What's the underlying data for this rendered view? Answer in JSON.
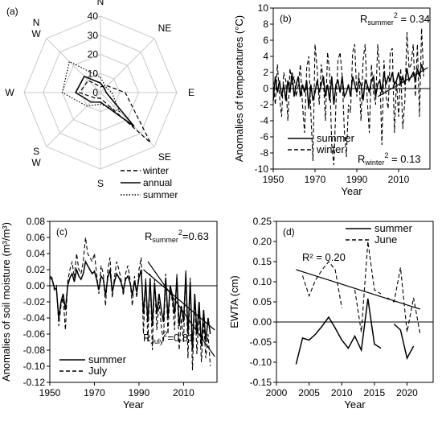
{
  "chart_data": [
    {
      "panel": "(a)",
      "type": "radar",
      "directions": [
        "N",
        "NE",
        "E",
        "SE",
        "S",
        "SW",
        "W",
        "NW"
      ],
      "direction_labels": [
        "N",
        "NE",
        "E",
        "SE",
        "S",
        "S\nW",
        "W",
        "N\nW"
      ],
      "r_ticks": [
        0,
        10,
        20,
        30,
        40
      ],
      "rmax": 40,
      "grid": true,
      "legend_position": "bottom-right",
      "series": [
        {
          "name": "winter",
          "dash": "dashed",
          "values": [
            3,
            5,
            13,
            37,
            3,
            4,
            11,
            9
          ]
        },
        {
          "name": "annual",
          "dash": "solid",
          "values": [
            5,
            3,
            3,
            25,
            5,
            7,
            13,
            12
          ]
        },
        {
          "name": "summer",
          "dash": "dotted",
          "values": [
            8,
            4,
            6,
            14,
            6,
            10,
            20,
            23
          ]
        }
      ]
    },
    {
      "panel": "(b)",
      "type": "line",
      "xlabel": "Year",
      "ylabel": "Anomalies of temperatures (°C)",
      "xlim": [
        1950,
        2025
      ],
      "ylim": [
        -10,
        10
      ],
      "xticks": [
        1950,
        1970,
        1990,
        2010
      ],
      "yticks": [
        -10,
        -8,
        -6,
        -4,
        -2,
        0,
        2,
        4,
        6,
        8,
        10
      ],
      "annotations": [
        {
          "label": "R",
          "sub": "summer",
          "tail": " = 0.34"
        },
        {
          "label": "R",
          "sub": "winter",
          "tail": " = 0.13"
        }
      ],
      "legend_position": "bottom-left",
      "x": [
        1950,
        1951,
        1952,
        1953,
        1954,
        1955,
        1956,
        1957,
        1958,
        1959,
        1960,
        1961,
        1962,
        1963,
        1964,
        1965,
        1966,
        1967,
        1968,
        1969,
        1970,
        1971,
        1972,
        1973,
        1974,
        1975,
        1976,
        1977,
        1978,
        1979,
        1980,
        1981,
        1982,
        1983,
        1984,
        1985,
        1986,
        1987,
        1988,
        1989,
        1990,
        1991,
        1992,
        1993,
        1994,
        1995,
        1996,
        1997,
        1998,
        1999,
        2000,
        2001,
        2002,
        2003,
        2004,
        2005,
        2006,
        2007,
        2008,
        2009,
        2010,
        2011,
        2012,
        2013,
        2014,
        2015,
        2016,
        2017,
        2018,
        2019,
        2020,
        2021,
        2022
      ],
      "series": [
        {
          "name": "summer",
          "dash": "solid",
          "values": [
            -1.5,
            1.5,
            -0.5,
            1.0,
            -1.0,
            0.5,
            -1.5,
            1.0,
            -0.5,
            2.0,
            -1.0,
            0.5,
            1.5,
            -1.0,
            0.5,
            -0.5,
            1.0,
            -2.5,
            0.5,
            -1.5,
            -0.5,
            1.0,
            -0.5,
            0.5,
            1.5,
            -1.0,
            0.5,
            -1.5,
            1.5,
            -2.0,
            0.5,
            1.0,
            -0.5,
            1.5,
            -1.0,
            -0.5,
            0.5,
            -1.0,
            1.5,
            0.5,
            -0.5,
            1.0,
            0.5,
            -1.5,
            1.0,
            0.5,
            -0.5,
            1.0,
            1.5,
            -1.0,
            0.5,
            1.0,
            -0.5,
            2.0,
            0.5,
            1.5,
            1.0,
            2.0,
            0.5,
            1.0,
            2.0,
            0.5,
            1.5,
            0.5,
            2.5,
            1.0,
            1.5,
            2.0,
            1.0,
            2.5,
            1.5,
            3.0,
            2.0
          ]
        },
        {
          "name": "winter",
          "dash": "dashed",
          "values": [
            1.0,
            -2.0,
            3.0,
            -1.0,
            -3.5,
            2.0,
            1.0,
            -4.0,
            2.5,
            0.5,
            1.5,
            -1.0,
            0.5,
            3.0,
            -2.0,
            -5.5,
            2.5,
            4.0,
            -3.0,
            -9.0,
            5.5,
            2.5,
            -2.0,
            3.0,
            1.0,
            -4.0,
            4.5,
            2.0,
            -7.0,
            -9.5,
            -2.0,
            3.5,
            4.5,
            1.5,
            -5.0,
            -8.5,
            -2.0,
            -3.0,
            4.5,
            5.5,
            -1.0,
            2.0,
            -4.0,
            3.5,
            5.5,
            -1.5,
            -5.5,
            3.0,
            -0.5,
            -2.0,
            5.5,
            2.0,
            -7.0,
            3.5,
            -1.0,
            -2.5,
            4.5,
            5.0,
            -5.5,
            1.0,
            -3.5,
            2.5,
            -5.0,
            -1.5,
            7.0,
            2.5,
            3.0,
            5.5,
            -1.0,
            5.5,
            -3.5,
            7.5,
            1.5
          ]
        }
      ],
      "trend_lines": [
        [
          2000,
          -1.0,
          2024,
          2.6
        ]
      ]
    },
    {
      "panel": "(c)",
      "type": "line",
      "xlabel": "Year",
      "ylabel": "Anomalies of  soil moisture (m³/m³)",
      "xlim": [
        1950,
        2025
      ],
      "ylim": [
        -0.12,
        0.08
      ],
      "xticks": [
        1950,
        1970,
        1990,
        2010
      ],
      "yticks": [
        -0.12,
        -0.1,
        -0.08,
        -0.06,
        -0.04,
        -0.02,
        0.0,
        0.02,
        0.04,
        0.06,
        0.08
      ],
      "annotations": [
        {
          "label": "R",
          "sub": "summer",
          "tail": "=0.63"
        },
        {
          "label": "R",
          "sub": "July",
          "tail": "=0.81"
        }
      ],
      "legend_position": "bottom-left",
      "x": [
        1950,
        1951,
        1952,
        1953,
        1954,
        1955,
        1956,
        1957,
        1958,
        1959,
        1960,
        1961,
        1962,
        1963,
        1964,
        1965,
        1966,
        1967,
        1968,
        1969,
        1970,
        1971,
        1972,
        1973,
        1974,
        1975,
        1976,
        1977,
        1978,
        1979,
        1980,
        1981,
        1982,
        1983,
        1984,
        1985,
        1986,
        1987,
        1988,
        1989,
        1990,
        1991,
        1992,
        1993,
        1994,
        1995,
        1996,
        1997,
        1998,
        1999,
        2000,
        2001,
        2002,
        2003,
        2004,
        2005,
        2006,
        2007,
        2008,
        2009,
        2010,
        2011,
        2012,
        2013,
        2014,
        2015,
        2016,
        2017,
        2018,
        2019,
        2020,
        2021,
        2022
      ],
      "series": [
        {
          "name": "summer",
          "dash": "solid",
          "values": [
            0.01,
            0.008,
            -0.002,
            -0.005,
            -0.04,
            -0.02,
            -0.01,
            -0.03,
            0.0,
            0.01,
            0.015,
            0.005,
            0.02,
            0.012,
            0.008,
            0.015,
            0.03,
            0.025,
            0.02,
            0.015,
            0.018,
            0.008,
            -0.005,
            0.012,
            0.008,
            -0.012,
            0.01,
            0.02,
            -0.008,
            0.005,
            0.015,
            0.01,
            0.004,
            -0.006,
            0.008,
            0.012,
            0.004,
            -0.012,
            0.006,
            -0.008,
            0.01,
            0.02,
            -0.035,
            0.005,
            -0.045,
            0.008,
            -0.05,
            0.004,
            -0.035,
            -0.01,
            -0.03,
            -0.045,
            0.01,
            -0.04,
            0.0,
            -0.012,
            -0.035,
            0.01,
            -0.05,
            -0.025,
            -0.045,
            0.015,
            -0.06,
            0.005,
            -0.08,
            -0.01,
            -0.06,
            -0.02,
            -0.075,
            -0.03,
            -0.07,
            -0.04,
            -0.06
          ]
        },
        {
          "name": "July",
          "dash": "dashed",
          "values": [
            0.012,
            0.01,
            -0.005,
            0.0,
            -0.05,
            -0.025,
            -0.015,
            -0.055,
            0.005,
            0.02,
            0.03,
            0.01,
            0.04,
            0.02,
            0.015,
            0.03,
            0.06,
            0.04,
            0.035,
            0.03,
            0.04,
            0.015,
            -0.01,
            0.025,
            0.015,
            -0.025,
            0.02,
            0.035,
            -0.015,
            0.01,
            0.03,
            0.02,
            0.008,
            -0.012,
            0.015,
            0.025,
            0.008,
            -0.025,
            0.012,
            -0.015,
            0.02,
            0.035,
            -0.06,
            0.01,
            -0.07,
            0.015,
            -0.08,
            0.008,
            -0.055,
            -0.02,
            -0.05,
            -0.07,
            0.015,
            -0.06,
            0.0,
            -0.02,
            -0.055,
            0.015,
            -0.08,
            -0.04,
            -0.07,
            0.02,
            -0.09,
            0.01,
            -0.105,
            -0.015,
            -0.085,
            -0.03,
            -0.095,
            -0.045,
            -0.09,
            -0.06,
            -0.1
          ]
        }
      ],
      "trend_lines": [
        [
          1992,
          0.02,
          2024,
          -0.055
        ],
        [
          1994,
          0.03,
          2024,
          -0.088
        ]
      ]
    },
    {
      "panel": "(d)",
      "type": "line",
      "xlabel": "Year",
      "ylabel": "EWTA (cm)",
      "xlim": [
        2000,
        2024
      ],
      "ylim": [
        -0.15,
        0.25
      ],
      "xticks": [
        2000,
        2005,
        2010,
        2015,
        2020
      ],
      "yticks": [
        -0.15,
        -0.1,
        -0.05,
        0.0,
        0.05,
        0.1,
        0.15,
        0.2,
        0.25
      ],
      "annotations": [
        {
          "text": "R² = 0.20"
        }
      ],
      "legend_position": "top-right",
      "series": [
        {
          "name": "summer",
          "dash": "solid",
          "segments": [
            [
              [
                2003,
                -0.105
              ],
              [
                2004,
                -0.04
              ],
              [
                2005,
                -0.045
              ],
              [
                2006,
                -0.03
              ],
              [
                2007,
                -0.01
              ],
              [
                2008,
                0.012
              ],
              [
                2009,
                -0.015
              ],
              [
                2010,
                -0.045
              ],
              [
                2011,
                -0.065
              ],
              [
                2012,
                -0.035
              ],
              [
                2013,
                -0.07
              ],
              [
                2014,
                0.058
              ],
              [
                2015,
                -0.055
              ],
              [
                2016,
                -0.065
              ]
            ],
            [
              [
                2018,
                -0.005
              ],
              [
                2019,
                -0.02
              ],
              [
                2020,
                -0.09
              ],
              [
                2021,
                -0.06
              ]
            ]
          ]
        },
        {
          "name": "June",
          "dash": "dashed",
          "segments": [
            [
              [
                2004,
                0.115
              ],
              [
                2005,
                0.065
              ],
              [
                2006,
                0.105
              ],
              [
                2007,
                0.13
              ],
              [
                2008,
                0.15
              ],
              [
                2009,
                0.13
              ],
              [
                2010,
                0.035
              ]
            ],
            [
              [
                2012,
                0.08
              ],
              [
                2013,
                -0.025
              ],
              [
                2014,
                0.2
              ],
              [
                2015,
                0.08
              ],
              [
                2016,
                0.07
              ]
            ],
            [
              [
                2017,
                0.06
              ],
              [
                2018,
                0.05
              ],
              [
                2019,
                0.135
              ],
              [
                2020,
                -0.025
              ],
              [
                2021,
                0.06
              ],
              [
                2022,
                -0.03
              ]
            ]
          ]
        }
      ],
      "trend_lines": [
        [
          2003,
          0.13,
          2022,
          0.032
        ]
      ]
    }
  ]
}
